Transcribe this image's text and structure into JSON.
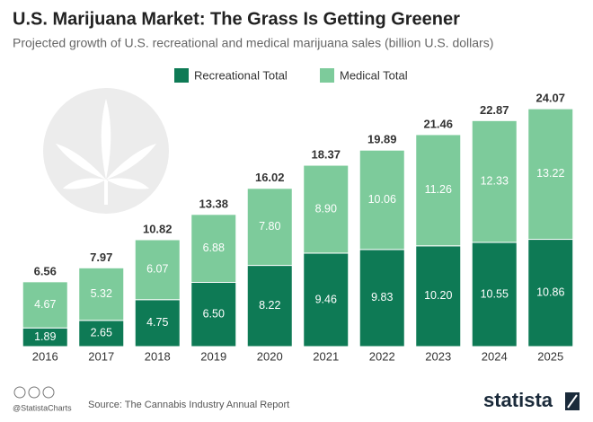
{
  "chart_data": {
    "type": "bar",
    "stacked": true,
    "title": "U.S. Marijuana Market: The Grass Is Getting Greener",
    "subtitle": "Projected growth of U.S. recreational and medical marijuana sales (billion U.S. dollars)",
    "categories": [
      "2016",
      "2017",
      "2018",
      "2019",
      "2020",
      "2021",
      "2022",
      "2023",
      "2024",
      "2025"
    ],
    "series": [
      {
        "name": "Recreational Total",
        "color": "#0e7a55",
        "values": [
          1.89,
          2.65,
          4.75,
          6.5,
          8.22,
          9.46,
          9.83,
          10.2,
          10.55,
          10.86
        ],
        "value_labels": [
          "1.89",
          "2.65",
          "4.75",
          "6.50",
          "8.22",
          "9.46",
          "9.83",
          "10.20",
          "10.55",
          "10.86"
        ]
      },
      {
        "name": "Medical Total",
        "color": "#7dcb9b",
        "values": [
          4.67,
          5.32,
          6.07,
          6.88,
          7.8,
          8.9,
          10.06,
          11.26,
          12.33,
          13.22
        ],
        "value_labels": [
          "4.67",
          "5.32",
          "6.07",
          "6.88",
          "7.80",
          "8.90",
          "10.06",
          "11.26",
          "12.33",
          "13.22"
        ]
      }
    ],
    "totals": [
      6.56,
      7.97,
      10.82,
      13.38,
      16.02,
      18.37,
      19.89,
      21.46,
      22.87,
      24.07
    ],
    "ylim": [
      0,
      25
    ],
    "grid": false,
    "legend": "top",
    "footer": {
      "handle": "@StatistaCharts",
      "source": "Source: The Cannabis Industry Annual Report",
      "brand": "statista"
    }
  }
}
